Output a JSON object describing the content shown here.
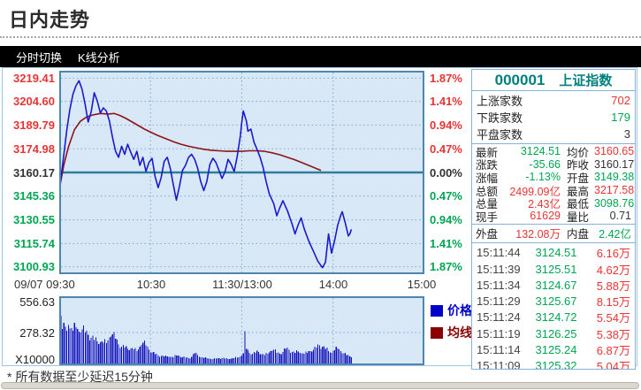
{
  "page": {
    "title": "日内走势",
    "footnote": "* 所有数据至少延迟15分钟"
  },
  "tabs": [
    {
      "label": "分时切换"
    },
    {
      "label": "K线分析"
    }
  ],
  "colors": {
    "up": "#e63535",
    "down": "#00a651",
    "flat": "#333333",
    "teal_header": "#00807d",
    "price_line": "#1a1acd",
    "avg_line": "#8e1414",
    "volume_bar": "#1212bb",
    "chart_bg": "#d9e8f7",
    "chart_border": "#4d86ae",
    "grid_dot": "#7da7cf",
    "zero_line": "#2e7ca0",
    "tab_bg": "#000000",
    "tab_text": "#ffffff"
  },
  "panel": {
    "code": "000001",
    "name": "上证指数",
    "counts": [
      {
        "label": "上涨家数",
        "value": "702",
        "cls": "up"
      },
      {
        "label": "下跌家数",
        "value": "179",
        "cls": "down"
      },
      {
        "label": "平盘家数",
        "value": "3",
        "cls": "flat"
      }
    ],
    "quotes": [
      {
        "l1": "最新",
        "v1": "3124.51",
        "c1": "down",
        "l2": "均价",
        "v2": "3160.65",
        "c2": "up"
      },
      {
        "l1": "涨跌",
        "v1": "-35.66",
        "c1": "down",
        "l2": "昨收",
        "v2": "3160.17",
        "c2": "flat"
      },
      {
        "l1": "涨幅",
        "v1": "-1.13%",
        "c1": "down",
        "l2": "开盘",
        "v2": "3149.38",
        "c2": "down"
      },
      {
        "l1": "总额",
        "v1": "2499.09亿",
        "c1": "up",
        "l2": "最高",
        "v2": "3217.58",
        "c2": "up"
      },
      {
        "l1": "总量",
        "v1": "2.43亿",
        "c1": "up",
        "l2": "最低",
        "v2": "3098.76",
        "c2": "down"
      },
      {
        "l1": "现手",
        "v1": "61629",
        "c1": "up",
        "l2": "量比",
        "v2": "0.71",
        "c2": "flat"
      }
    ],
    "inout": {
      "out_label": "外盘",
      "out_value": "132.08万",
      "in_label": "内盘",
      "in_value": "2.42亿"
    },
    "ticks": [
      {
        "time": "15:11:44",
        "price": "3124.51",
        "vol": "6.16万"
      },
      {
        "time": "15:11:39",
        "price": "3125.51",
        "vol": "4.62万"
      },
      {
        "time": "15:11:34",
        "price": "3124.67",
        "vol": "5.88万"
      },
      {
        "time": "15:11:29",
        "price": "3125.67",
        "vol": "8.15万"
      },
      {
        "time": "15:11:24",
        "price": "3124.72",
        "vol": "5.54万"
      },
      {
        "time": "15:11:19",
        "price": "3126.25",
        "vol": "5.38万"
      },
      {
        "time": "15:11:14",
        "price": "3125.24",
        "vol": "6.87万"
      },
      {
        "time": "15:11:09",
        "price": "3125.32",
        "vol": "5.04万"
      }
    ]
  },
  "chart_data": {
    "type": "line",
    "prev_close": 3160.17,
    "x_axis_labels": [
      "09/07 09:30",
      "10:30",
      "11:30/13:00",
      "14:00",
      "15:00"
    ],
    "left_axis": [
      {
        "text": "3219.41",
        "pct": 1.87,
        "cls": "up"
      },
      {
        "text": "3204.60",
        "pct": 1.41,
        "cls": "up"
      },
      {
        "text": "3189.79",
        "pct": 0.94,
        "cls": "up"
      },
      {
        "text": "3174.98",
        "pct": 0.47,
        "cls": "up"
      },
      {
        "text": "3160.17",
        "pct": 0.0,
        "cls": "flat"
      },
      {
        "text": "3145.36",
        "pct": -0.47,
        "cls": "down"
      },
      {
        "text": "3130.55",
        "pct": -0.94,
        "cls": "down"
      },
      {
        "text": "3115.74",
        "pct": -1.41,
        "cls": "down"
      },
      {
        "text": "3100.93",
        "pct": -1.87,
        "cls": "down"
      }
    ],
    "right_axis": [
      {
        "text": "1.87%",
        "pct": 1.87,
        "cls": "up"
      },
      {
        "text": "1.41%",
        "pct": 1.41,
        "cls": "up"
      },
      {
        "text": "0.94%",
        "pct": 0.94,
        "cls": "up"
      },
      {
        "text": "0.47%",
        "pct": 0.47,
        "cls": "up"
      },
      {
        "text": "0.00%",
        "pct": 0.0,
        "cls": "flat"
      },
      {
        "text": "0.47%",
        "pct": -0.47,
        "cls": "down"
      },
      {
        "text": "0.94%",
        "pct": -0.94,
        "cls": "down"
      },
      {
        "text": "1.41%",
        "pct": -1.41,
        "cls": "down"
      },
      {
        "text": "1.87%",
        "pct": -1.87,
        "cls": "down"
      }
    ],
    "legend": [
      {
        "label": "价格",
        "color": "#0000cc"
      },
      {
        "label": "均线",
        "color": "#8b0000"
      }
    ],
    "series": [
      {
        "name": "价格",
        "unit": "pct_change_vs_prev_close",
        "points": [
          [
            0,
            -0.34
          ],
          [
            1,
            -0.15
          ],
          [
            3,
            0.35
          ],
          [
            5,
            0.85
          ],
          [
            7,
            1.25
          ],
          [
            9,
            1.55
          ],
          [
            11,
            1.72
          ],
          [
            13,
            1.82
          ],
          [
            15,
            1.65
          ],
          [
            17,
            1.35
          ],
          [
            19,
            1.0
          ],
          [
            21,
            1.2
          ],
          [
            23,
            1.58
          ],
          [
            25,
            1.42
          ],
          [
            27,
            1.18
          ],
          [
            29,
            1.28
          ],
          [
            31,
            1.22
          ],
          [
            33,
            1.02
          ],
          [
            35,
            0.7
          ],
          [
            37,
            0.42
          ],
          [
            39,
            0.3
          ],
          [
            41,
            0.52
          ],
          [
            43,
            0.36
          ],
          [
            45,
            0.56
          ],
          [
            47,
            0.4
          ],
          [
            49,
            0.26
          ],
          [
            51,
            0.42
          ],
          [
            53,
            0.14
          ],
          [
            55,
            0.3
          ],
          [
            57,
            0.02
          ],
          [
            59,
            0.2
          ],
          [
            61,
            0.28
          ],
          [
            63,
            -0.08
          ],
          [
            65,
            -0.3
          ],
          [
            67,
            -0.1
          ],
          [
            69,
            0.22
          ],
          [
            71,
            0.3
          ],
          [
            73,
            0.08
          ],
          [
            75,
            -0.25
          ],
          [
            77,
            -0.55
          ],
          [
            79,
            -0.28
          ],
          [
            81,
            0.04
          ],
          [
            83,
            0.14
          ],
          [
            85,
            0.3
          ],
          [
            87,
            0.36
          ],
          [
            89,
            0.26
          ],
          [
            91,
            0.08
          ],
          [
            93,
            -0.18
          ],
          [
            95,
            -0.36
          ],
          [
            97,
            -0.18
          ],
          [
            99,
            0.16
          ],
          [
            101,
            0.28
          ],
          [
            103,
            0.2
          ],
          [
            105,
            0.04
          ],
          [
            107,
            -0.12
          ],
          [
            109,
            0.02
          ],
          [
            111,
            0.26
          ],
          [
            113,
            0.16
          ],
          [
            115,
            0.02
          ],
          [
            117,
            0.32
          ],
          [
            119,
            0.72
          ],
          [
            120,
            1.0
          ],
          [
            121,
            1.22
          ],
          [
            123,
            1.02
          ],
          [
            124,
            0.82
          ],
          [
            126,
            0.86
          ],
          [
            128,
            0.6
          ],
          [
            130,
            0.46
          ],
          [
            132,
            0.3
          ],
          [
            134,
            0.1
          ],
          [
            136,
            -0.18
          ],
          [
            138,
            -0.42
          ],
          [
            141,
            -0.62
          ],
          [
            143,
            -0.86
          ],
          [
            145,
            -0.7
          ],
          [
            147,
            -0.56
          ],
          [
            150,
            -0.76
          ],
          [
            153,
            -1.02
          ],
          [
            155,
            -1.22
          ],
          [
            157,
            -1.04
          ],
          [
            159,
            -0.9
          ],
          [
            161,
            -1.12
          ],
          [
            164,
            -1.36
          ],
          [
            167,
            -1.56
          ],
          [
            170,
            -1.76
          ],
          [
            173,
            -1.89
          ],
          [
            175,
            -1.78
          ],
          [
            177,
            -1.22
          ],
          [
            179,
            -1.6
          ],
          [
            181,
            -1.35
          ],
          [
            183,
            -1.05
          ],
          [
            185,
            -0.85
          ],
          [
            186,
            -0.78
          ],
          [
            188,
            -1.0
          ],
          [
            190,
            -1.26
          ],
          [
            191,
            -1.22
          ],
          [
            192,
            -1.13
          ]
        ]
      },
      {
        "name": "均线",
        "unit": "pct_change_vs_prev_close",
        "points": [
          [
            0,
            -0.34
          ],
          [
            3,
            0.15
          ],
          [
            6,
            0.5
          ],
          [
            10,
            0.85
          ],
          [
            14,
            1.02
          ],
          [
            18,
            1.1
          ],
          [
            22,
            1.14
          ],
          [
            27,
            1.17
          ],
          [
            32,
            1.16
          ],
          [
            36,
            1.17
          ],
          [
            40,
            1.13
          ],
          [
            44,
            1.07
          ],
          [
            48,
            1.0
          ],
          [
            52,
            0.93
          ],
          [
            56,
            0.86
          ],
          [
            60,
            0.8
          ],
          [
            65,
            0.73
          ],
          [
            70,
            0.67
          ],
          [
            75,
            0.61
          ],
          [
            80,
            0.56
          ],
          [
            85,
            0.52
          ],
          [
            90,
            0.49
          ],
          [
            95,
            0.46
          ],
          [
            100,
            0.44
          ],
          [
            105,
            0.43
          ],
          [
            110,
            0.42
          ],
          [
            115,
            0.42
          ],
          [
            120,
            0.42
          ],
          [
            125,
            0.43
          ],
          [
            130,
            0.43
          ],
          [
            135,
            0.42
          ],
          [
            140,
            0.39
          ],
          [
            145,
            0.35
          ],
          [
            150,
            0.3
          ],
          [
            155,
            0.25
          ],
          [
            160,
            0.19
          ],
          [
            164,
            0.14
          ],
          [
            168,
            0.09
          ],
          [
            172,
            0.04
          ]
        ]
      }
    ],
    "volume": {
      "unit_label": "X10000",
      "axis": [
        "556.63",
        "278.32"
      ],
      "anchors": [
        [
          0,
          556
        ],
        [
          1,
          430
        ],
        [
          2,
          310
        ],
        [
          3,
          365
        ],
        [
          4,
          330
        ],
        [
          5,
          295
        ],
        [
          6,
          345
        ],
        [
          7,
          315
        ],
        [
          9,
          295
        ],
        [
          11,
          325
        ],
        [
          13,
          285
        ],
        [
          15,
          305
        ],
        [
          17,
          280
        ],
        [
          19,
          258
        ],
        [
          21,
          232
        ],
        [
          23,
          210
        ],
        [
          25,
          200
        ],
        [
          27,
          192
        ],
        [
          29,
          186
        ],
        [
          31,
          182
        ],
        [
          33,
          235
        ],
        [
          35,
          262
        ],
        [
          37,
          222
        ],
        [
          39,
          172
        ],
        [
          41,
          152
        ],
        [
          43,
          142
        ],
        [
          45,
          132
        ],
        [
          47,
          136
        ],
        [
          49,
          126
        ],
        [
          51,
          112
        ],
        [
          53,
          152
        ],
        [
          55,
          186
        ],
        [
          57,
          162
        ],
        [
          59,
          122
        ],
        [
          61,
          100
        ],
        [
          63,
          82
        ],
        [
          65,
          72
        ],
        [
          67,
          66
        ],
        [
          69,
          62
        ],
        [
          71,
          63
        ],
        [
          73,
          59
        ],
        [
          75,
          56
        ],
        [
          77,
          71
        ],
        [
          79,
          66
        ],
        [
          81,
          56
        ],
        [
          83,
          51
        ],
        [
          85,
          49
        ],
        [
          87,
          61
        ],
        [
          89,
          91
        ],
        [
          91,
          76
        ],
        [
          93,
          56
        ],
        [
          95,
          49
        ],
        [
          97,
          46
        ],
        [
          99,
          43
        ],
        [
          101,
          41
        ],
        [
          103,
          43
        ],
        [
          105,
          46
        ],
        [
          107,
          49
        ],
        [
          109,
          45
        ],
        [
          111,
          41
        ],
        [
          113,
          43
        ],
        [
          115,
          46
        ],
        [
          117,
          52
        ],
        [
          119,
          62
        ],
        [
          121,
          90
        ],
        [
          122,
          292
        ],
        [
          123,
          130
        ],
        [
          125,
          96
        ],
        [
          127,
          88
        ],
        [
          129,
          96
        ],
        [
          131,
          102
        ],
        [
          133,
          82
        ],
        [
          135,
          77
        ],
        [
          137,
          87
        ],
        [
          139,
          112
        ],
        [
          141,
          122
        ],
        [
          143,
          97
        ],
        [
          145,
          87
        ],
        [
          147,
          102
        ],
        [
          149,
          132
        ],
        [
          151,
          122
        ],
        [
          153,
          102
        ],
        [
          155,
          97
        ],
        [
          157,
          107
        ],
        [
          159,
          92
        ],
        [
          161,
          87
        ],
        [
          163,
          97
        ],
        [
          165,
          112
        ],
        [
          167,
          122
        ],
        [
          169,
          142
        ],
        [
          171,
          162
        ],
        [
          173,
          152
        ],
        [
          175,
          132
        ],
        [
          177,
          112
        ],
        [
          179,
          97
        ],
        [
          181,
          120
        ],
        [
          183,
          135
        ],
        [
          185,
          110
        ],
        [
          187,
          90
        ],
        [
          189,
          75
        ],
        [
          191,
          62
        ],
        [
          192,
          56
        ]
      ]
    },
    "axis_ranges": {
      "x_minutes": [
        0,
        240
      ],
      "pct": [
        -1.87,
        1.87
      ]
    }
  }
}
